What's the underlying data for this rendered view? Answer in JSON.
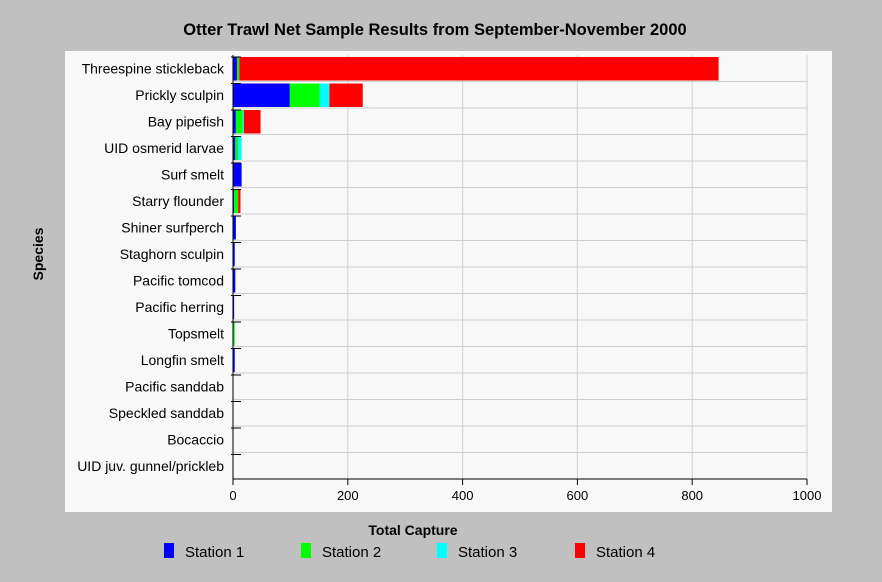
{
  "chart_data": {
    "type": "bar",
    "orientation": "horizontal",
    "stacked": true,
    "title": "Otter Trawl Net Sample Results from September-November 2000",
    "xlabel": "Total Capture",
    "ylabel": "Species",
    "xlim": [
      0,
      1000
    ],
    "xticks": [
      "0",
      "200",
      "400",
      "600",
      "800",
      "1000"
    ],
    "grid": true,
    "legend_position": "bottom",
    "categories": [
      "Threespine stickleback",
      "Prickly sculpin",
      "Bay pipefish",
      "UID osmerid larvae",
      "Surf smelt",
      "Starry flounder",
      "Shiner surfperch",
      "Staghorn sculpin",
      "Pacific tomcod",
      "Pacific herring",
      "Topsmelt",
      "Longfin smelt",
      "Pacific sanddab",
      "Speckled sanddab",
      "Bocaccio",
      "UID juv. gunnel/prickleb"
    ],
    "series": [
      {
        "name": "Station 1",
        "color": "#0000ff",
        "values": [
          7,
          99,
          5,
          4,
          15,
          2,
          5,
          3,
          4,
          2,
          1,
          3,
          0,
          0,
          0,
          0
        ]
      },
      {
        "name": "Station 2",
        "color": "#00ff00",
        "values": [
          4,
          52,
          12,
          5,
          0,
          7,
          0,
          0,
          0,
          0,
          2,
          0,
          0,
          0,
          0,
          0
        ]
      },
      {
        "name": "Station 3",
        "color": "#00ffff",
        "values": [
          0,
          17,
          2,
          6,
          0,
          0,
          0,
          0,
          0,
          0,
          0,
          0,
          0,
          0,
          0,
          0
        ]
      },
      {
        "name": "Station 4",
        "color": "#ff0000",
        "values": [
          835,
          58,
          29,
          0,
          0,
          4,
          0,
          0,
          0,
          0,
          0,
          0,
          0,
          0,
          0,
          0
        ]
      }
    ]
  },
  "colors": {
    "background": "#c0c0c0",
    "plot_background": "#f8f8f8",
    "grid": "#d0d0d0"
  }
}
